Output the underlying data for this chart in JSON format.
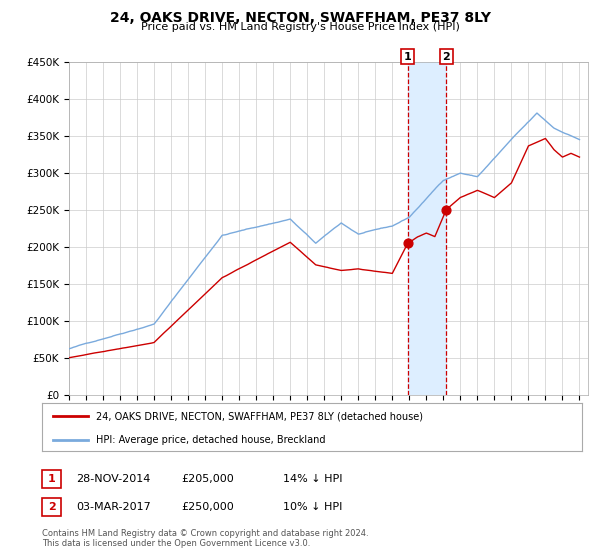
{
  "title": "24, OAKS DRIVE, NECTON, SWAFFHAM, PE37 8LY",
  "subtitle": "Price paid vs. HM Land Registry's House Price Index (HPI)",
  "ylim": [
    0,
    450000
  ],
  "yticks": [
    0,
    50000,
    100000,
    150000,
    200000,
    250000,
    300000,
    350000,
    400000,
    450000
  ],
  "ytick_labels": [
    "£0",
    "£50K",
    "£100K",
    "£150K",
    "£200K",
    "£250K",
    "£300K",
    "£350K",
    "£400K",
    "£450K"
  ],
  "xlim_start": 1995.0,
  "xlim_end": 2025.5,
  "transaction1_date": 2014.91,
  "transaction1_price": 205000,
  "transaction1_label": "1",
  "transaction2_date": 2017.17,
  "transaction2_price": 250000,
  "transaction2_label": "2",
  "shade_color": "#ddeeff",
  "red_color": "#cc0000",
  "blue_color": "#7aaadd",
  "grid_color": "#cccccc",
  "background_color": "#ffffff",
  "legend_label_red": "24, OAKS DRIVE, NECTON, SWAFFHAM, PE37 8LY (detached house)",
  "legend_label_blue": "HPI: Average price, detached house, Breckland",
  "annotation1_date": "28-NOV-2014",
  "annotation1_price": "£205,000",
  "annotation1_hpi": "14% ↓ HPI",
  "annotation2_date": "03-MAR-2017",
  "annotation2_price": "£250,000",
  "annotation2_hpi": "10% ↓ HPI",
  "footnote1": "Contains HM Land Registry data © Crown copyright and database right 2024.",
  "footnote2": "This data is licensed under the Open Government Licence v3.0."
}
